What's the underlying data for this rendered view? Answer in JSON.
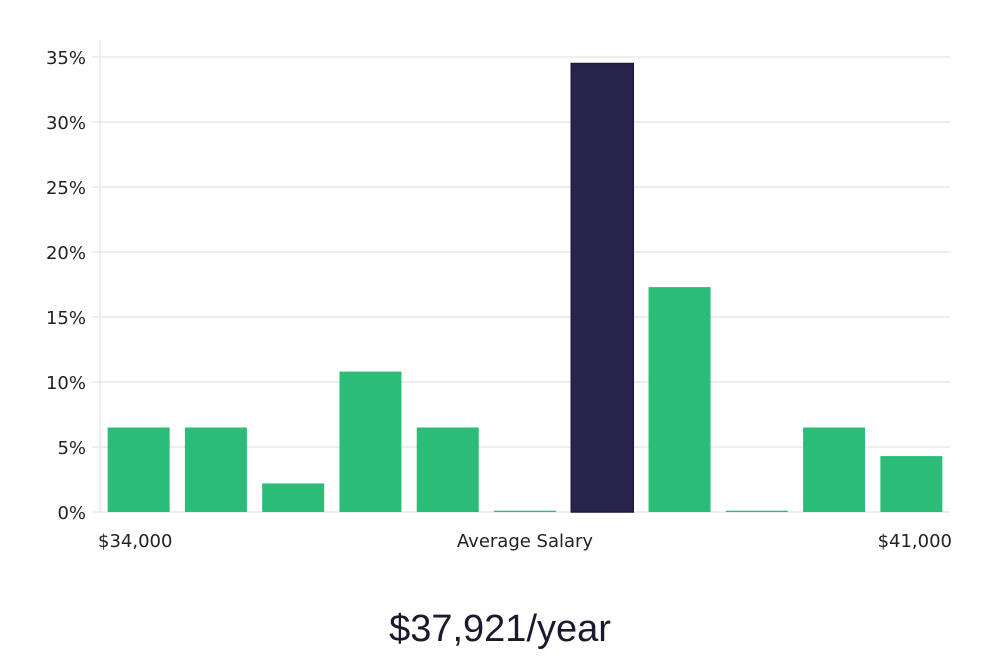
{
  "chart_data": {
    "type": "bar",
    "title": "",
    "xlabel": "Average Salary",
    "ylabel": "",
    "ylim": [
      0,
      35
    ],
    "yticks": [
      0,
      5,
      10,
      15,
      20,
      25,
      30,
      35
    ],
    "ytick_labels": [
      "0%",
      "5%",
      "10%",
      "15%",
      "20%",
      "25%",
      "30%",
      "35%"
    ],
    "x_range_labels": {
      "min": "$34,000",
      "max": "$41,000"
    },
    "values": [
      6.5,
      6.5,
      2.2,
      10.8,
      6.5,
      0.1,
      34.5,
      17.3,
      0.1,
      6.5,
      4.3
    ],
    "highlight_index": 6,
    "colors": {
      "bar": "#2bbd77",
      "highlight": "#28244a",
      "grid": "#e3e3e3",
      "text": "#222222"
    }
  },
  "summary": {
    "salary_text": "$37,921/year"
  }
}
